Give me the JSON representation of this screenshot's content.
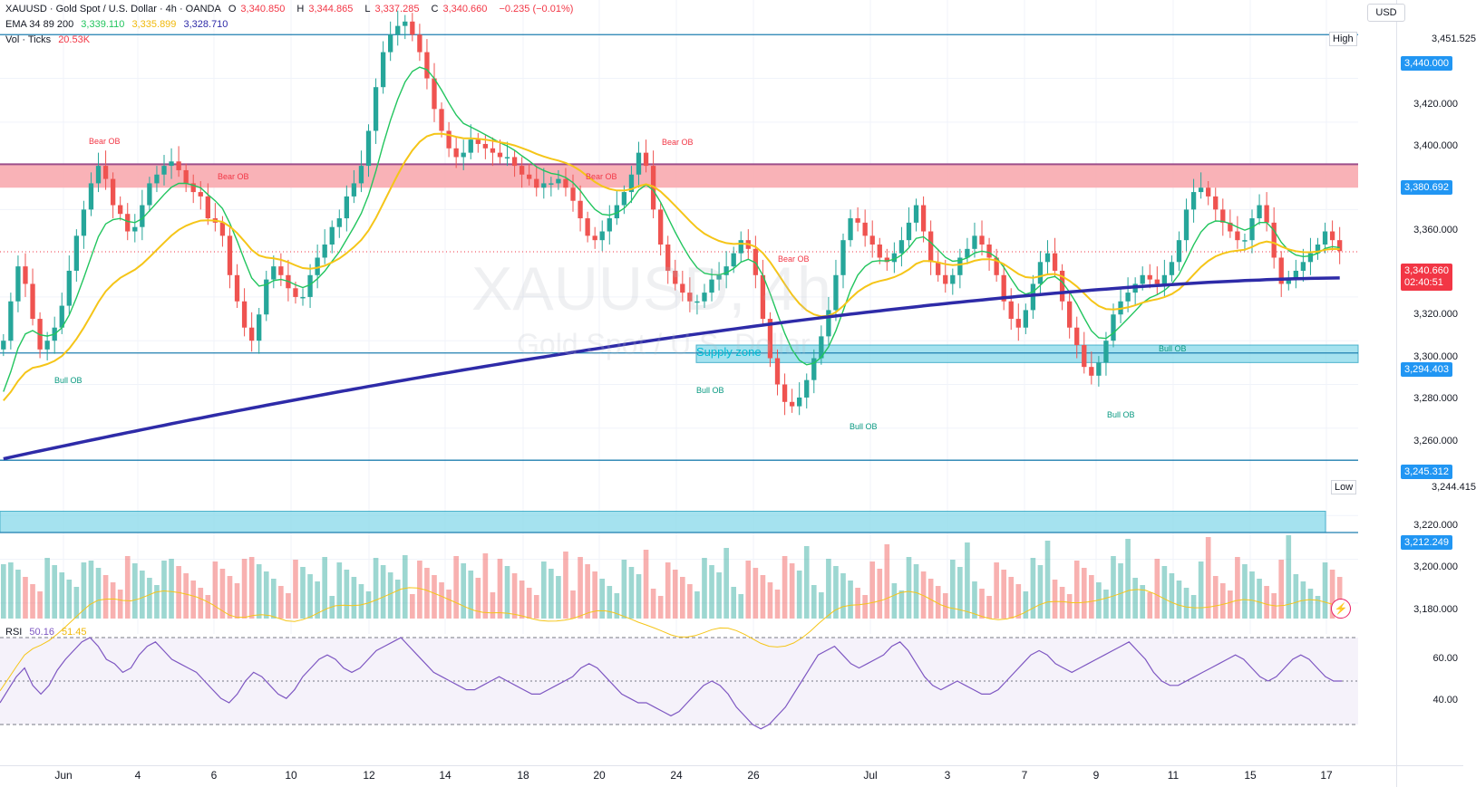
{
  "header": {
    "symbol": "XAUUSD · Gold Spot / U.S. Dollar · 4h · OANDA",
    "o_label": "O",
    "o_value": "3,340.850",
    "h_label": "H",
    "h_value": "3,344.865",
    "l_label": "L",
    "l_value": "3,337.285",
    "c_label": "C",
    "c_value": "3,340.660",
    "change": "−0.235 (−0.01%)",
    "ema_label": "EMA 34 89 200",
    "ema34": "3,339.110",
    "ema89": "3,335.899",
    "ema200": "3,328.710",
    "vol_label": "Vol · Ticks",
    "vol_value": "20.53K",
    "rsi_label": "RSI",
    "rsi_value": "50.16",
    "rsi_ma_value": "51.45"
  },
  "watermark": {
    "symbol": "XAUUSD, 4h",
    "name": "Gold Spot / U.S. Dollar"
  },
  "currency_button": "USD",
  "price_axis": {
    "labels": [
      "3,420.000",
      "3,400.000",
      "3,360.000",
      "3,320.000",
      "3,300.000",
      "3,280.000",
      "3,260.000",
      "3,220.000",
      "3,200.000",
      "3,180.000"
    ],
    "rsi_labels": [
      "60.00",
      "40.00"
    ]
  },
  "tags": {
    "high_label": "High",
    "high_value": "3,451.525",
    "low_label": "Low",
    "low_value": "3,244.415",
    "level_3440": "3,440.000",
    "level_3380": "3,380.692",
    "current_price": "3,340.660",
    "countdown": "02:40:51",
    "level_3294": "3,294.403",
    "level_3245": "3,245.312",
    "level_3212": "3,212.249"
  },
  "time_axis": [
    "Jun",
    "4",
    "6",
    "10",
    "12",
    "14",
    "18",
    "20",
    "24",
    "26",
    "Jul",
    "3",
    "7",
    "9",
    "11",
    "15",
    "17"
  ],
  "annotations": {
    "bear_ob": "Bear OB",
    "bull_ob": "Bull OB",
    "supply_zone": "Supply zone"
  },
  "colors": {
    "up": "#26a69a",
    "down": "#ef5350",
    "ema34": "#22c55e",
    "ema89": "#f5c518",
    "ema200": "#2e2ba8",
    "zone_red": "#f8a5aa",
    "zone_cyan": "#8fdcec",
    "level_line": "#1f7fb0",
    "rsi": "#7e57c2",
    "rsi_ma": "#f5c518"
  },
  "chart_data": {
    "type": "candlestick",
    "symbol": "XAUUSD",
    "timeframe": "4h",
    "ylim": [
      3170,
      3460
    ],
    "high": 3451.525,
    "low": 3244.415,
    "horizontal_levels": [
      3440.0,
      3380.692,
      3294.403,
      3245.312,
      3212.249
    ],
    "zones": [
      {
        "type": "bear",
        "from": 3370,
        "to": 3380.692
      },
      {
        "type": "supply",
        "from": 3290,
        "to": 3298
      },
      {
        "type": "demand",
        "from": 3212.249,
        "to": 3222
      }
    ],
    "ema_last": {
      "ema34": 3339.11,
      "ema89": 3335.899,
      "ema200": 3328.71
    },
    "rsi_last": 50.16,
    "rsi_ma_last": 51.45,
    "closes": [
      3300,
      3318,
      3334,
      3326,
      3310,
      3296,
      3300,
      3306,
      3316,
      3332,
      3348,
      3360,
      3372,
      3380,
      3374,
      3362,
      3358,
      3350,
      3352,
      3362,
      3372,
      3376,
      3380,
      3382,
      3378,
      3372,
      3368,
      3366,
      3356,
      3354,
      3348,
      3330,
      3318,
      3306,
      3300,
      3312,
      3328,
      3334,
      3330,
      3324,
      3320,
      3320,
      3330,
      3338,
      3344,
      3352,
      3356,
      3366,
      3372,
      3380,
      3396,
      3416,
      3432,
      3440,
      3444,
      3446,
      3440,
      3432,
      3420,
      3406,
      3396,
      3388,
      3384,
      3386,
      3392,
      3390,
      3388,
      3386,
      3384,
      3384,
      3380,
      3376,
      3374,
      3370,
      3372,
      3372,
      3374,
      3370,
      3364,
      3356,
      3348,
      3346,
      3350,
      3356,
      3362,
      3368,
      3376,
      3386,
      3380,
      3360,
      3344,
      3332,
      3326,
      3322,
      3318,
      3318,
      3322,
      3328,
      3330,
      3334,
      3340,
      3346,
      3342,
      3330,
      3310,
      3292,
      3280,
      3272,
      3270,
      3274,
      3282,
      3292,
      3302,
      3314,
      3330,
      3346,
      3356,
      3354,
      3348,
      3344,
      3338,
      3336,
      3340,
      3346,
      3354,
      3362,
      3350,
      3336,
      3330,
      3326,
      3330,
      3338,
      3342,
      3348,
      3344,
      3338,
      3330,
      3318,
      3310,
      3306,
      3314,
      3326,
      3336,
      3340,
      3332,
      3318,
      3306,
      3298,
      3288,
      3284,
      3290,
      3300,
      3312,
      3318,
      3322,
      3326,
      3330,
      3328,
      3326,
      3330,
      3336,
      3346,
      3360,
      3368,
      3370,
      3366,
      3360,
      3354,
      3350,
      3346,
      3346,
      3356,
      3362,
      3354,
      3338,
      3326,
      3328,
      3332,
      3336,
      3340,
      3344,
      3350,
      3346,
      3341
    ],
    "rsi": [
      40,
      46,
      52,
      56,
      48,
      44,
      48,
      55,
      60,
      64,
      68,
      70,
      66,
      60,
      58,
      54,
      56,
      62,
      66,
      68,
      64,
      60,
      58,
      56,
      54,
      50,
      46,
      42,
      40,
      44,
      50,
      54,
      52,
      48,
      44,
      42,
      46,
      52,
      56,
      60,
      62,
      60,
      56,
      54,
      56,
      60,
      64,
      66,
      68,
      70,
      66,
      62,
      58,
      54,
      52,
      50,
      48,
      46,
      46,
      48,
      50,
      52,
      50,
      48,
      46,
      44,
      44,
      46,
      48,
      50,
      52,
      56,
      58,
      56,
      52,
      48,
      44,
      42,
      40,
      40,
      38,
      36,
      34,
      36,
      40,
      44,
      48,
      50,
      48,
      44,
      38,
      34,
      30,
      28,
      30,
      34,
      38,
      44,
      50,
      56,
      62,
      64,
      66,
      62,
      58,
      56,
      58,
      60,
      62,
      66,
      68,
      64,
      58,
      52,
      48,
      46,
      48,
      50,
      48,
      46,
      44,
      44,
      46,
      50,
      54,
      58,
      62,
      64,
      62,
      58,
      56,
      54,
      56,
      58,
      60,
      62,
      64,
      66,
      68,
      64,
      60,
      54,
      50,
      48,
      48,
      50,
      52,
      54,
      56,
      58,
      60,
      62,
      60,
      56,
      52,
      50,
      52,
      56,
      60,
      62,
      60,
      56,
      52,
      50,
      50
    ]
  }
}
